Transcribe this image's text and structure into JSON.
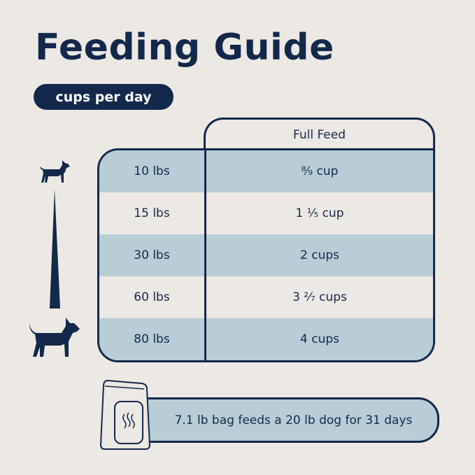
{
  "title": "Feeding Guide",
  "unit_pill": "cups per day",
  "table": {
    "column_header": "Full Feed",
    "rows": [
      {
        "weight": "10 lbs",
        "amount": "⁸⁄₉ cup"
      },
      {
        "weight": "15 lbs",
        "amount": "1 ¹⁄₅ cup"
      },
      {
        "weight": "30 lbs",
        "amount": "2 cups"
      },
      {
        "weight": "60 lbs",
        "amount": "3 ²⁄₇ cups"
      },
      {
        "weight": "80 lbs",
        "amount": "4 cups"
      }
    ]
  },
  "banner": "7.1 lb bag feeds a 20 lb dog for 31 days",
  "colors": {
    "navy": "#13284A",
    "light_blue": "#B8CDD6",
    "background": "#ECE8E4"
  },
  "icons": [
    "small-dog-icon",
    "size-wedge-icon",
    "large-dog-icon",
    "food-bag-icon"
  ]
}
